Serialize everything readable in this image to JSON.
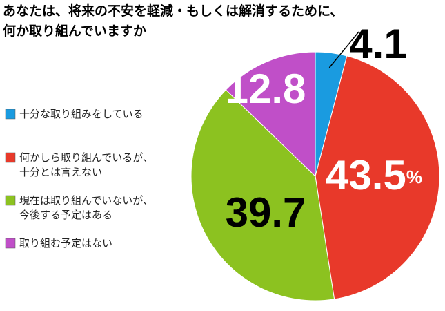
{
  "chart_data": {
    "type": "pie",
    "title": [
      "あなたは、将来の不安を軽減・もしくは解消するために、",
      "何か取り組んでいますか"
    ],
    "categories": [
      [
        "十分な取り組みをしている"
      ],
      [
        "何かしら取り組んでいるが、",
        "十分とは言えない"
      ],
      [
        "現在は取り組んでいないが、",
        "今後する予定はある"
      ],
      [
        "取り組む予定はない"
      ]
    ],
    "values": [
      4.1,
      43.5,
      39.7,
      12.8
    ],
    "value_labels": [
      "4.1",
      "43.5%",
      "39.7",
      "12.8"
    ],
    "colors": [
      "#1a9be0",
      "#e8392a",
      "#8cc220",
      "#c04fc8"
    ]
  }
}
